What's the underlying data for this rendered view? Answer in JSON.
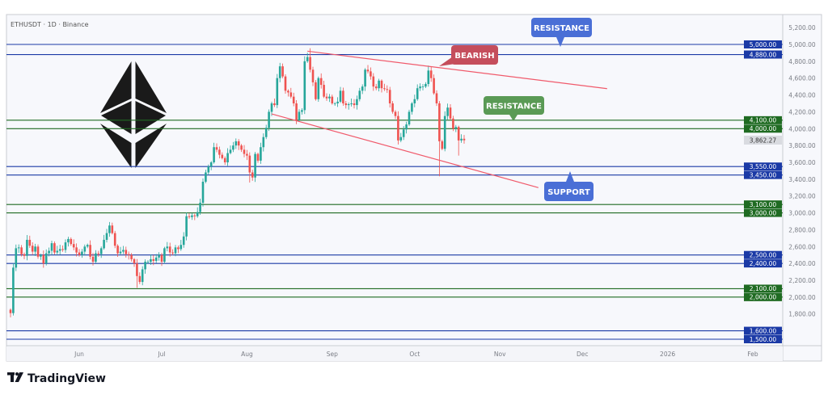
{
  "header": {
    "symbol_line": "ETHUSDT · 1D · Binance"
  },
  "footer": {
    "brand": "TradingView"
  },
  "colors": {
    "up": "#26a69a",
    "down": "#ef5350",
    "blue_level": "#1b3aa6",
    "green_level": "#1f6b22",
    "trendline": "#f05a6b",
    "callout_blue": "#4a6fd6",
    "callout_red": "#c54e5c",
    "callout_green": "#5a9a55",
    "last_price_bg": "#d9dbe0"
  },
  "chart_data": {
    "type": "candlestick",
    "title": "",
    "symbol": "ETHUSDT",
    "timeframe": "1D",
    "exchange": "Binance",
    "start_date": "2025-05-07",
    "close": [
      1810,
      2350,
      2580,
      2590,
      2510,
      2490,
      2680,
      2610,
      2540,
      2600,
      2480,
      2500,
      2400,
      2520,
      2550,
      2640,
      2530,
      2550,
      2570,
      2560,
      2650,
      2690,
      2630,
      2590,
      2530,
      2500,
      2540,
      2600,
      2620,
      2480,
      2420,
      2520,
      2510,
      2580,
      2680,
      2760,
      2850,
      2760,
      2610,
      2520,
      2540,
      2560,
      2510,
      2500,
      2450,
      2400,
      2250,
      2180,
      2330,
      2420,
      2420,
      2450,
      2430,
      2470,
      2500,
      2420,
      2580,
      2600,
      2530,
      2520,
      2590,
      2570,
      2620,
      2720,
      2960,
      2950,
      2970,
      2960,
      3010,
      3120,
      3370,
      3480,
      3550,
      3600,
      3780,
      3750,
      3690,
      3650,
      3600,
      3710,
      3750,
      3800,
      3850,
      3800,
      3750,
      3700,
      3680,
      3480,
      3420,
      3700,
      3620,
      3780,
      3900,
      4010,
      4200,
      4300,
      4280,
      4600,
      4740,
      4620,
      4450,
      4430,
      4380,
      4300,
      4100,
      4200,
      4220,
      4800,
      4850,
      4700,
      4550,
      4350,
      4600,
      4520,
      4380,
      4360,
      4380,
      4300,
      4300,
      4320,
      4450,
      4300,
      4280,
      4290,
      4300,
      4280,
      4350,
      4450,
      4500,
      4700,
      4680,
      4620,
      4500,
      4480,
      4570,
      4480,
      4470,
      4460,
      4300,
      4200,
      4150,
      3860,
      3900,
      3990,
      4050,
      4200,
      4300,
      4350,
      4480,
      4500,
      4500,
      4530,
      4690,
      4600,
      4420,
      4300,
      3850,
      3760,
      4150,
      4250,
      4120,
      4000,
      4020,
      3860,
      3880,
      3862.27
    ],
    "wick_extremes": {
      "2025-05-07": {
        "low": 1760
      },
      "2025-06-22": {
        "low": 2110
      },
      "2025-08-02": {
        "low": 3360
      },
      "2025-08-24": {
        "high": 4955
      },
      "2025-10-10": {
        "low": 3435
      },
      "2025-10-17": {
        "low": 3680
      }
    },
    "last_price": "3,862.27",
    "y_axis": {
      "ticks": [
        "5,200.00",
        "5,000.00",
        "4,800.00",
        "4,600.00",
        "4,400.00",
        "4,200.00",
        "4,000.00",
        "3,800.00",
        "3,600.00",
        "3,400.00",
        "3,200.00",
        "3,000.00",
        "2,800.00",
        "2,600.00",
        "2,400.00",
        "2,200.00",
        "2,000.00",
        "1,800.00"
      ],
      "tick_values": [
        5200,
        5000,
        4800,
        4600,
        4400,
        4200,
        4000,
        3800,
        3600,
        3400,
        3200,
        3000,
        2800,
        2600,
        2400,
        2200,
        2000,
        1800
      ],
      "range": [
        1450,
        5270
      ]
    },
    "x_axis": {
      "ticks": [
        {
          "label": "Jun",
          "date": "2025-06-01"
        },
        {
          "label": "Jul",
          "date": "2025-07-01"
        },
        {
          "label": "Aug",
          "date": "2025-08-01"
        },
        {
          "label": "Sep",
          "date": "2025-09-01"
        },
        {
          "label": "Oct",
          "date": "2025-10-01"
        },
        {
          "label": "Nov",
          "date": "2025-11-01"
        },
        {
          "label": "Dec",
          "date": "2025-12-01"
        },
        {
          "label": "2026",
          "date": "2026-01-01"
        },
        {
          "label": "Feb",
          "date": "2026-02-01"
        }
      ]
    },
    "levels": [
      {
        "price": 5000,
        "label": "5,000.00",
        "color": "blue"
      },
      {
        "price": 4880,
        "label": "4,880.00",
        "color": "blue"
      },
      {
        "price": 4100,
        "label": "4,100.00",
        "color": "green"
      },
      {
        "price": 4000,
        "label": "4,000.00",
        "color": "green"
      },
      {
        "price": 3550,
        "label": "3,550.00",
        "color": "blue"
      },
      {
        "price": 3450,
        "label": "3,450.00",
        "color": "blue"
      },
      {
        "price": 3100,
        "label": "3,100.00",
        "color": "green"
      },
      {
        "price": 3000,
        "label": "3,000.00",
        "color": "green"
      },
      {
        "price": 2500,
        "label": "2,500.00",
        "color": "blue"
      },
      {
        "price": 2400,
        "label": "2,400.00",
        "color": "blue"
      },
      {
        "price": 2100,
        "label": "2,100.00",
        "color": "green"
      },
      {
        "price": 2000,
        "label": "2,000.00",
        "color": "green"
      },
      {
        "price": 1600,
        "label": "1,600.00",
        "color": "blue"
      },
      {
        "price": 1500,
        "label": "1,500.00",
        "color": "blue"
      }
    ],
    "trendlines": [
      {
        "from": {
          "date": "2025-08-23",
          "price": 4920
        },
        "to": {
          "date": "2025-12-10",
          "price": 4475
        }
      },
      {
        "from": {
          "date": "2025-08-10",
          "price": 4175
        },
        "to": {
          "date": "2025-11-15",
          "price": 3300
        }
      }
    ],
    "annotations": [
      {
        "text": "RESISTANCE",
        "color": "blue"
      },
      {
        "text": "BEARISH",
        "color": "red"
      },
      {
        "text": "RESISTANCE",
        "color": "green"
      },
      {
        "text": "SUPPORT",
        "color": "blue"
      }
    ]
  }
}
